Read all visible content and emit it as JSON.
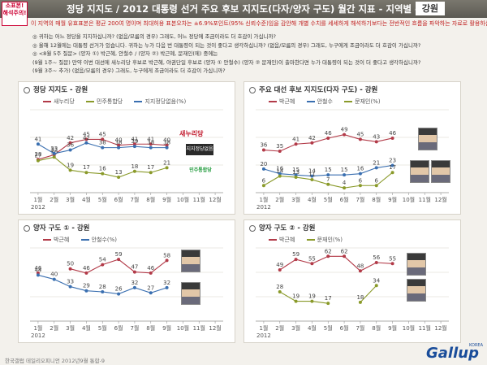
{
  "header": {
    "badge": "소표본! 해석주의!",
    "title": "정당 지지도 / 2012 대통령 선거 주요 후보 지지도(다자/양자 구도) 월간 지표 - 지역별 -",
    "region": "강원"
  },
  "subtitle": "이 지역의 매월 유효표본은 평균 200여 명이며 최대허용 표본오차는 ±6.9%포인트(95% 신뢰수준)임을 감안해 개별 수치를 세세하게 해석하기보다는 전반적인 흐름을 파악하는 자료로 활용하십시오.",
  "questions": [
    "◎ 귀하는 어느 정당을 지지하십니까? (없음/모름의 경우) 그래도, 어느 정당에 조금이라도 더 호감이 가십니까?",
    "◎ 올해 12월에는 대통령 선거가 있습니다. 귀하는 누가 다음 번 대통령이 되는 것이 좋다고 생각하십니까? (없음/모름의 경우) 그래도, 누구에게 조금이라도 더 호감이 가십니까?",
    "◎ <8월 5주 질문> (양자 ①) 박근혜, 안철수 / (양자 ②) 박근혜, 문재인(에) 중에는",
    "(9월 1주~ 질문) 만약 이번 대선에 새누리당 후보로 박근혜, 야권단일 후보로 (양자 ① 안철수) (양자 ② 문재인)이 출마한다면 누가 대통령이 되는 것이 더 좋다고 생각하십니까?",
    "(9월 3주~ 추가) (없음/모름의 경우) 그래도, 누구에게 조금이라도 더 호감이 가십니까?"
  ],
  "colors": {
    "red": "#b23a48",
    "blue": "#3a6fb0",
    "green": "#8a9a2a"
  },
  "panels": [
    {
      "id": "p1",
      "title": "정당 지지도 - 강원",
      "logos": {
        "saenuri": "새누리당",
        "unaffiliated": "지지정당없음",
        "minjoo": "민주통합당"
      },
      "chart_data": {
        "type": "line",
        "categories": [
          "1월",
          "2월",
          "3월",
          "4월",
          "5월",
          "6월",
          "7월",
          "8월",
          "9월",
          "10월",
          "11월",
          "12월"
        ],
        "year_label": "2012",
        "ylim": [
          0,
          70
        ],
        "series": [
          {
            "name": "새누리당",
            "color": "#b23a48",
            "values": [
              28,
              32,
              42,
              45,
              45,
              40,
              41,
              41,
              40,
              null,
              null,
              null
            ]
          },
          {
            "name": "민주통합당",
            "color": "#8a9a2a",
            "values": [
              27,
              30,
              19,
              17,
              16,
              13,
              18,
              17,
              21,
              null,
              null,
              null
            ]
          },
          {
            "name": "지지정당없음(%)",
            "color": "#3a6fb0",
            "values": [
              41,
              33,
              36,
              42,
              38,
              38,
              39,
              38,
              38,
              null,
              null,
              null
            ]
          }
        ]
      }
    },
    {
      "id": "p2",
      "title": "주요 대선 후보 지지도(다자 구도) - 강원",
      "chart_data": {
        "type": "line",
        "categories": [
          "1월",
          "2월",
          "3월",
          "4월",
          "5월",
          "6월",
          "7월",
          "8월",
          "9월",
          "10월",
          "11월",
          "12월"
        ],
        "year_label": "2012",
        "ylim": [
          0,
          70
        ],
        "series": [
          {
            "name": "박근혜",
            "color": "#b23a48",
            "values": [
              36,
              35,
              41,
              42,
              46,
              49,
              45,
              43,
              46,
              null,
              null,
              null
            ]
          },
          {
            "name": "안철수",
            "color": "#3a6fb0",
            "values": [
              20,
              16,
              15,
              14,
              15,
              15,
              16,
              21,
              23,
              null,
              null,
              null
            ]
          },
          {
            "name": "문재인(%)",
            "color": "#8a9a2a",
            "values": [
              6,
              14,
              13,
              11,
              7,
              4,
              6,
              6,
              17,
              null,
              null,
              null
            ]
          }
        ]
      }
    },
    {
      "id": "p3",
      "title": "양자 구도 ① - 강원",
      "chart_data": {
        "type": "line",
        "categories": [
          "1월",
          "2월",
          "3월",
          "4월",
          "5월",
          "6월",
          "7월",
          "8월",
          "9월",
          "10월",
          "11월",
          "12월"
        ],
        "year_label": "2012",
        "ylim": [
          0,
          70
        ],
        "series": [
          {
            "name": "박근혜",
            "color": "#b23a48",
            "values": [
              46,
              null,
              50,
              46,
              54,
              59,
              47,
              46,
              58,
              null,
              null,
              null
            ]
          },
          {
            "name": "안철수(%)",
            "color": "#3a6fb0",
            "values": [
              44,
              40,
              33,
              29,
              28,
              26,
              32,
              27,
              32,
              null,
              null,
              null
            ]
          }
        ]
      }
    },
    {
      "id": "p4",
      "title": "양자 구도 ② - 강원",
      "chart_data": {
        "type": "line",
        "categories": [
          "1월",
          "2월",
          "3월",
          "4월",
          "5월",
          "6월",
          "7월",
          "8월",
          "9월",
          "10월",
          "11월",
          "12월"
        ],
        "year_label": "2012",
        "ylim": [
          0,
          70
        ],
        "series": [
          {
            "name": "박근혜",
            "color": "#b23a48",
            "values": [
              null,
              49,
              59,
              55,
              62,
              62,
              48,
              56,
              55,
              null,
              null,
              null
            ]
          },
          {
            "name": "문재인(%)",
            "color": "#8a9a2a",
            "values": [
              null,
              28,
              19,
              19,
              17,
              null,
              18,
              34,
              null,
              null,
              null,
              null
            ]
          }
        ]
      }
    }
  ],
  "footer": "한국갤럽 데일리오피니언 2012년9월 통합-9",
  "brand": {
    "name": "Gallup",
    "sub": "KOREA"
  }
}
